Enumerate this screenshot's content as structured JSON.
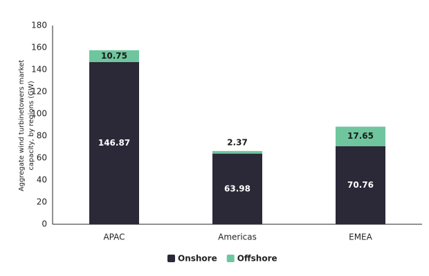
{
  "chart_data": {
    "type": "stacked_bar",
    "y_label": [
      "Aggregate wind turbinetowers market",
      "capacity, by regions (GW)"
    ],
    "categories": [
      "APAC",
      "Americas",
      "EMEA"
    ],
    "series": [
      {
        "name": "Onshore",
        "color": "#2b2838",
        "values": [
          146.87,
          63.98,
          70.76
        ]
      },
      {
        "name": "Offshore",
        "color": "#6fc69e",
        "values": [
          10.75,
          2.37,
          17.65
        ]
      }
    ],
    "ylim": [
      0,
      180
    ],
    "yticks": [
      0,
      20,
      40,
      60,
      80,
      100,
      120,
      140,
      160,
      180
    ],
    "legend": "bottom"
  }
}
